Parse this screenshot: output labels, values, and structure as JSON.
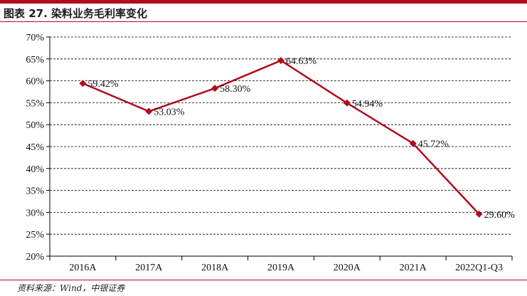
{
  "figure": {
    "title": "图表 27. 染料业务毛利率变化",
    "source": "资料来源：Wind，中银证券"
  },
  "colors": {
    "line": "#b00c1e",
    "grid": "#000000",
    "accent": "#b00c1e"
  },
  "chart_data": {
    "type": "line",
    "categories": [
      "2016A",
      "2017A",
      "2018A",
      "2019A",
      "2020A",
      "2021A",
      "2022Q1-Q3"
    ],
    "series": [
      {
        "values": [
          59.42,
          53.03,
          58.3,
          64.63,
          54.94,
          45.72,
          29.6
        ],
        "labels": [
          "59.42%",
          "53.03%",
          "58.30%",
          "64.63%",
          "54.94%",
          "45.72%",
          "29.60%"
        ]
      }
    ],
    "ylim": [
      20,
      70
    ],
    "yticks": [
      20,
      25,
      30,
      35,
      40,
      45,
      50,
      55,
      60,
      65,
      70
    ],
    "ytick_labels": [
      "20%",
      "25%",
      "30%",
      "35%",
      "40%",
      "45%",
      "50%",
      "55%",
      "60%",
      "65%",
      "70%"
    ],
    "grid": "horizontal dashed",
    "marker": "diamond",
    "title": "",
    "xlabel": "",
    "ylabel": ""
  }
}
